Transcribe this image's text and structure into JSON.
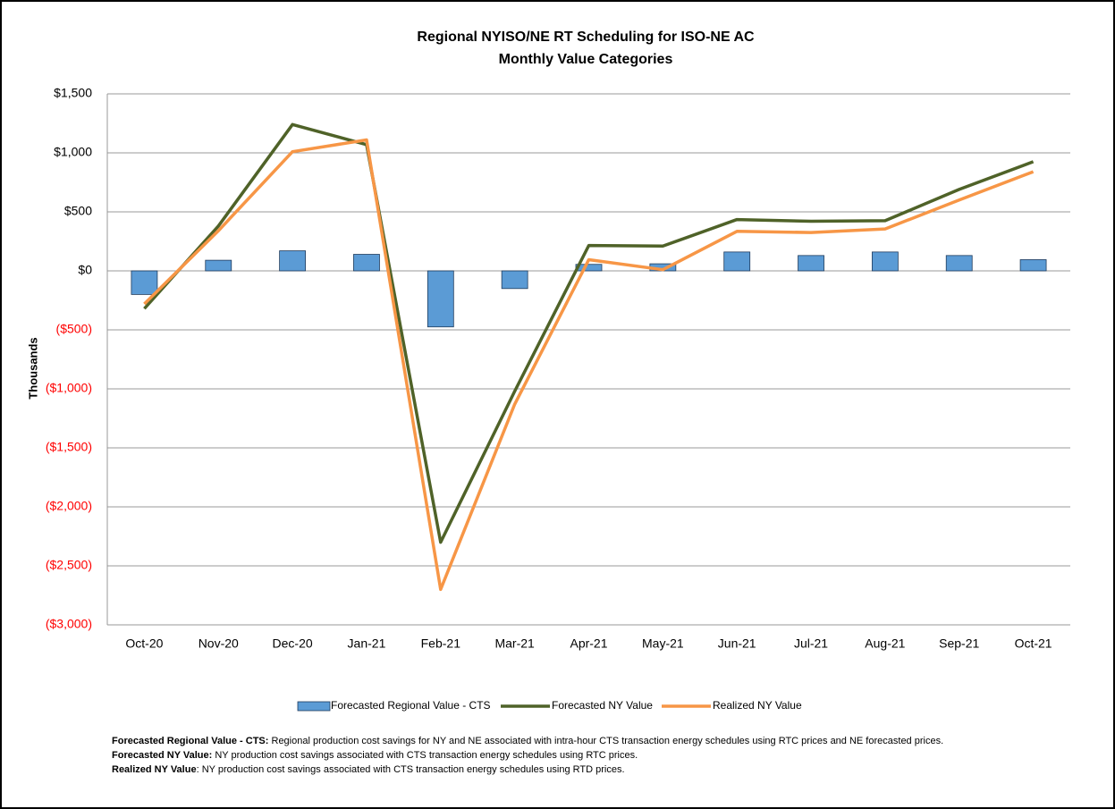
{
  "chart_data": {
    "type": "bar-line",
    "title": [
      "Regional NYISO/NE RT Scheduling for ISO-NE AC",
      "Monthly Value Categories"
    ],
    "y_label": "Thousands",
    "categories": [
      "Oct-20",
      "Nov-20",
      "Dec-20",
      "Jan-21",
      "Feb-21",
      "Mar-21",
      "Apr-21",
      "May-21",
      "Jun-21",
      "Jul-21",
      "Aug-21",
      "Sep-21",
      "Oct-21"
    ],
    "series": [
      {
        "name": "Forecasted Regional Value - CTS",
        "kind": "bar",
        "color": "#5b9bd5",
        "values": [
          -200,
          90,
          170,
          140,
          -475,
          -150,
          55,
          60,
          160,
          130,
          160,
          130,
          95
        ]
      },
      {
        "name": "Forecasted NY Value",
        "kind": "line",
        "color": "#4f6228",
        "values": [
          -320,
          380,
          1240,
          1070,
          -2300,
          -1020,
          215,
          210,
          435,
          420,
          425,
          690,
          925
        ]
      },
      {
        "name": "Realized NY Value",
        "kind": "line",
        "color": "#f79646",
        "values": [
          -280,
          340,
          1010,
          1110,
          -2700,
          -1130,
          95,
          10,
          335,
          325,
          355,
          600,
          840
        ]
      }
    ],
    "ylim": [
      -3000,
      1500
    ],
    "yticks": [
      {
        "value": 1500,
        "label": "$1,500"
      },
      {
        "value": 1000,
        "label": "$1,000"
      },
      {
        "value": 500,
        "label": "$500"
      },
      {
        "value": 0,
        "label": "$0"
      },
      {
        "value": -500,
        "label": "($500)"
      },
      {
        "value": -1000,
        "label": "($1,000)"
      },
      {
        "value": -1500,
        "label": "($1,500)"
      },
      {
        "value": -2000,
        "label": "($2,000)"
      },
      {
        "value": -2500,
        "label": "($2,500)"
      },
      {
        "value": -3000,
        "label": "($3,000)"
      }
    ],
    "negative_tick_color": "#ff0000",
    "grid": true,
    "legend": "bottom",
    "notes": [
      {
        "term": "Forecasted Regional Value - CTS:",
        "text": " Regional production cost savings for NY and NE associated with intra-hour CTS transaction energy schedules using RTC prices and NE forecasted prices."
      },
      {
        "term": "Forecasted NY Value:",
        "text": " NY production cost savings associated with CTS transaction energy schedules using RTC prices."
      },
      {
        "term": "Realized NY Value",
        "text": ": NY production cost savings associated with CTS transaction energy schedules using RTD prices."
      }
    ]
  }
}
